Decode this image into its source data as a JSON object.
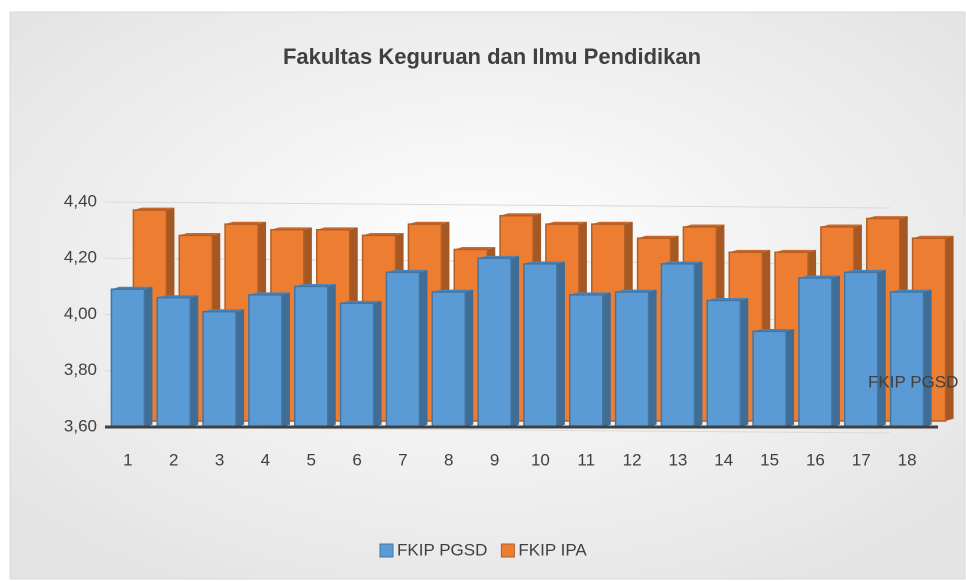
{
  "chart_data": {
    "type": "bar3d",
    "title": "Fakultas Keguruan dan Ilmu Pendidikan",
    "categories": [
      "1",
      "2",
      "3",
      "4",
      "5",
      "6",
      "7",
      "8",
      "9",
      "10",
      "11",
      "12",
      "13",
      "14",
      "15",
      "16",
      "17",
      "18"
    ],
    "series": [
      {
        "name": "FKIP PGSD",
        "color": "#5b9bd5",
        "values": [
          4.09,
          4.06,
          4.01,
          4.07,
          4.1,
          4.04,
          4.15,
          4.08,
          4.2,
          4.18,
          4.07,
          4.08,
          4.18,
          4.05,
          3.94,
          4.13,
          4.15,
          4.08
        ]
      },
      {
        "name": "FKIP IPA",
        "color": "#ed7d31",
        "values": [
          4.35,
          4.26,
          4.3,
          4.28,
          4.28,
          4.26,
          4.3,
          4.21,
          4.33,
          4.3,
          4.3,
          4.25,
          4.29,
          4.2,
          4.2,
          4.29,
          4.32,
          4.25
        ]
      }
    ],
    "ylim": [
      3.6,
      4.4
    ],
    "yticks": [
      {
        "value": 3.6,
        "label": "3,60"
      },
      {
        "value": 3.8,
        "label": "3,80"
      },
      {
        "value": 4.0,
        "label": "4,00"
      },
      {
        "value": 4.2,
        "label": "4,20"
      },
      {
        "value": 4.4,
        "label": "4,40"
      }
    ],
    "grid": true,
    "legend": "bottom"
  }
}
